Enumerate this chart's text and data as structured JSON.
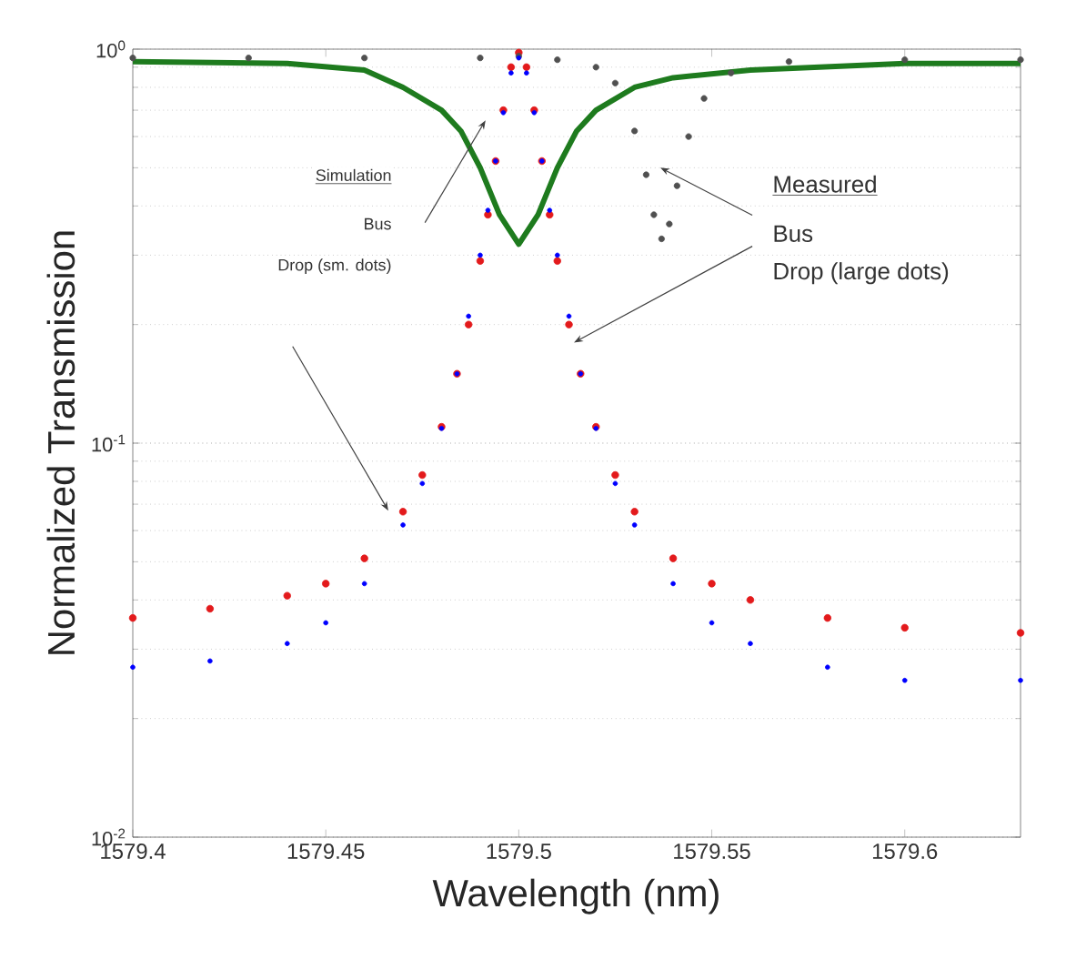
{
  "chart_data": {
    "type": "line",
    "xlabel": "Wavelength (nm)",
    "ylabel": "Normalized Transmission",
    "log": "y",
    "grid": "y",
    "xlim": [
      1579.4,
      1579.63
    ],
    "xticks": [
      1579.4,
      1579.45,
      1579.5,
      1579.55,
      1579.6
    ],
    "ylim": [
      0.01,
      1
    ],
    "yticks": [
      {
        "value": 0.01,
        "label": "10$^{-2}$"
      },
      {
        "value": 0.1,
        "label": "10$^{-1}$"
      },
      {
        "value": 1,
        "label": "10$^{0}$"
      }
    ],
    "annotations": [
      "Simulation",
      "Bus",
      "Drop (sm. dots)",
      "Measured",
      "Bus",
      "Drop (large dots)"
    ],
    "series": [
      {
        "type": "scatter",
        "marker": "circle",
        "color": "#0000ff",
        "x": [
          1579.4,
          1579.42,
          1579.44,
          1579.45,
          1579.46,
          1579.47,
          1579.475,
          1579.48,
          1579.484,
          1579.487,
          1579.49,
          1579.492,
          1579.494,
          1579.496,
          1579.498,
          1579.5,
          1579.502,
          1579.504,
          1579.506,
          1579.508,
          1579.51,
          1579.513,
          1579.516,
          1579.52,
          1579.525,
          1579.53,
          1579.54,
          1579.55,
          1579.56,
          1579.58,
          1579.6,
          1579.63
        ],
        "values": [
          0.027,
          0.028,
          0.031,
          0.035,
          0.044,
          0.062,
          0.079,
          0.109,
          0.15,
          0.21,
          0.3,
          0.39,
          0.52,
          0.69,
          0.87,
          0.95,
          0.87,
          0.69,
          0.52,
          0.39,
          0.3,
          0.21,
          0.15,
          0.109,
          0.079,
          0.062,
          0.044,
          0.035,
          0.031,
          0.027,
          0.025,
          0.025
        ]
      },
      {
        "type": "scatter",
        "marker": "circle",
        "color": "#e31a1c",
        "x": [
          1579.4,
          1579.42,
          1579.44,
          1579.45,
          1579.46,
          1579.47,
          1579.475,
          1579.48,
          1579.484,
          1579.487,
          1579.49,
          1579.492,
          1579.494,
          1579.496,
          1579.498,
          1579.5,
          1579.502,
          1579.504,
          1579.506,
          1579.508,
          1579.51,
          1579.513,
          1579.516,
          1579.52,
          1579.525,
          1579.53,
          1579.54,
          1579.55,
          1579.56,
          1579.58,
          1579.6,
          1579.63
        ],
        "values": [
          0.036,
          0.038,
          0.041,
          0.044,
          0.051,
          0.067,
          0.083,
          0.11,
          0.15,
          0.2,
          0.29,
          0.38,
          0.52,
          0.7,
          0.9,
          0.98,
          0.9,
          0.7,
          0.52,
          0.38,
          0.29,
          0.2,
          0.15,
          0.11,
          0.083,
          0.067,
          0.051,
          0.044,
          0.04,
          0.036,
          0.034,
          0.033
        ]
      },
      {
        "type": "scatter",
        "marker": "circle",
        "color": "#505050",
        "x": [
          1579.4,
          1579.43,
          1579.46,
          1579.49,
          1579.5,
          1579.51,
          1579.52,
          1579.525,
          1579.53,
          1579.533,
          1579.535,
          1579.537,
          1579.539,
          1579.541,
          1579.544,
          1579.548,
          1579.555,
          1579.57,
          1579.6,
          1579.63
        ],
        "values": [
          0.95,
          0.95,
          0.95,
          0.95,
          0.96,
          0.94,
          0.9,
          0.82,
          0.62,
          0.48,
          0.38,
          0.33,
          0.36,
          0.45,
          0.6,
          0.75,
          0.87,
          0.93,
          0.94,
          0.94
        ]
      },
      {
        "type": "line",
        "color": "#1e7b1e",
        "marker": "none",
        "x": [
          1579.4,
          1579.44,
          1579.46,
          1579.47,
          1579.48,
          1579.485,
          1579.49,
          1579.495,
          1579.5,
          1579.505,
          1579.51,
          1579.515,
          1579.52,
          1579.53,
          1579.54,
          1579.56,
          1579.6,
          1579.63
        ],
        "values": [
          0.93,
          0.92,
          0.885,
          0.8,
          0.7,
          0.62,
          0.5,
          0.38,
          0.32,
          0.38,
          0.5,
          0.62,
          0.7,
          0.8,
          0.846,
          0.885,
          0.92,
          0.92
        ]
      }
    ]
  }
}
